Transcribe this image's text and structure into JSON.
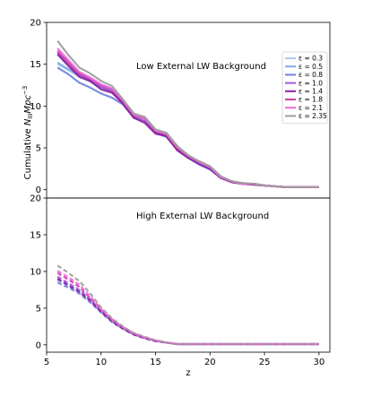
{
  "chart_data": [
    {
      "type": "line",
      "title": "Low External LW Background",
      "xlabel": "",
      "ylabel_main": "Cumulative ",
      "ylabel_symbol": "N",
      "ylabel_sub": "III",
      "ylabel_unit": "Mpc",
      "ylabel_exp": "−3",
      "xlim": [
        5,
        31
      ],
      "ylim": [
        -1,
        20
      ],
      "yticks": [
        0,
        5,
        10,
        15,
        20
      ],
      "xticks": [],
      "legend_placement": "top-right",
      "line_style": "solid",
      "x": [
        6,
        7,
        8,
        9,
        10,
        11,
        12,
        13,
        14,
        15,
        16,
        17,
        18,
        19,
        20,
        21,
        22,
        23,
        24,
        25,
        26,
        27,
        28,
        29,
        30
      ],
      "series": [
        {
          "name": "ε = 0.3",
          "color": "#a9cdf0",
          "values": [
            15.0,
            14.3,
            13.5,
            12.9,
            12.2,
            11.8,
            10.5,
            9.0,
            8.5,
            7.0,
            6.5,
            5.0,
            4.0,
            3.2,
            2.6,
            1.5,
            1.0,
            0.7,
            0.7,
            0.5,
            0.4,
            0.3,
            0.3,
            0.3,
            0.3
          ]
        },
        {
          "name": "ε = 0.5",
          "color": "#7ea8e8",
          "values": [
            15.2,
            14.4,
            13.7,
            13.0,
            12.3,
            11.9,
            10.6,
            9.0,
            8.6,
            7.0,
            6.6,
            5.0,
            4.0,
            3.3,
            2.6,
            1.5,
            1.0,
            0.7,
            0.7,
            0.5,
            0.4,
            0.3,
            0.3,
            0.3,
            0.3
          ]
        },
        {
          "name": "ε = 0.8",
          "color": "#6f7fe0",
          "values": [
            14.6,
            13.8,
            12.8,
            12.2,
            11.5,
            11.0,
            10.2,
            8.6,
            8.2,
            6.8,
            6.3,
            4.8,
            3.8,
            3.0,
            2.4,
            1.4,
            0.9,
            0.7,
            0.6,
            0.5,
            0.4,
            0.3,
            0.3,
            0.3,
            0.3
          ]
        },
        {
          "name": "ε = 1.0",
          "color": "#a05adc",
          "values": [
            16.4,
            15.0,
            13.8,
            13.1,
            12.3,
            11.7,
            10.4,
            8.7,
            8.2,
            6.8,
            6.4,
            4.8,
            3.9,
            3.2,
            2.5,
            1.4,
            0.9,
            0.7,
            0.7,
            0.5,
            0.4,
            0.3,
            0.3,
            0.3,
            0.3
          ]
        },
        {
          "name": "ε = 1.4",
          "color": "#8a1f9e",
          "values": [
            16.2,
            14.8,
            13.5,
            13.0,
            12.0,
            11.6,
            10.3,
            8.6,
            8.0,
            6.7,
            6.4,
            4.7,
            3.8,
            3.1,
            2.5,
            1.4,
            0.9,
            0.7,
            0.6,
            0.5,
            0.4,
            0.3,
            0.3,
            0.3,
            0.3
          ]
        },
        {
          "name": "ε = 1.8",
          "color": "#d03ca8",
          "values": [
            16.6,
            15.2,
            13.9,
            13.3,
            12.5,
            12.0,
            10.6,
            8.9,
            8.5,
            7.0,
            6.6,
            5.0,
            4.0,
            3.3,
            2.7,
            1.5,
            1.0,
            0.7,
            0.7,
            0.5,
            0.4,
            0.3,
            0.3,
            0.3,
            0.3
          ]
        },
        {
          "name": "ε = 2.1",
          "color": "#f06ad8",
          "values": [
            16.9,
            15.5,
            14.1,
            13.4,
            12.6,
            12.1,
            10.7,
            9.0,
            8.6,
            7.1,
            6.7,
            5.1,
            4.1,
            3.3,
            2.7,
            1.5,
            1.0,
            0.7,
            0.7,
            0.5,
            0.4,
            0.3,
            0.3,
            0.3,
            0.3
          ]
        },
        {
          "name": "ε = 2.35",
          "color": "#9c9c9c",
          "values": [
            17.8,
            16.1,
            14.6,
            13.9,
            13.0,
            12.4,
            10.8,
            9.1,
            8.7,
            7.2,
            6.8,
            5.2,
            4.1,
            3.4,
            2.8,
            1.6,
            1.0,
            0.8,
            0.7,
            0.5,
            0.4,
            0.3,
            0.3,
            0.3,
            0.3
          ]
        }
      ]
    },
    {
      "type": "line",
      "title": "High External LW Background",
      "xlabel": "z",
      "ylabel_main": "",
      "ylabel_symbol": "",
      "ylabel_sub": "",
      "ylabel_unit": "",
      "ylabel_exp": "",
      "xlim": [
        5,
        31
      ],
      "ylim": [
        -1,
        20
      ],
      "yticks": [
        0,
        5,
        10,
        15,
        20
      ],
      "xticks": [
        5,
        10,
        15,
        20,
        25,
        30
      ],
      "line_style": "dashed",
      "x": [
        6,
        7,
        8,
        9,
        10,
        11,
        12,
        13,
        14,
        15,
        16,
        17,
        18,
        19,
        20,
        21,
        22,
        23,
        24,
        25,
        26,
        27,
        28,
        29,
        30
      ],
      "series": [
        {
          "color": "#a9cdf0",
          "values": [
            8.8,
            8.0,
            7.2,
            6.0,
            4.5,
            3.2,
            2.3,
            1.5,
            1.0,
            0.6,
            0.3,
            0.1,
            0.1,
            0.1,
            0.1,
            0.1,
            0.1,
            0.1,
            0.1,
            0.1,
            0.1,
            0.1,
            0.1,
            0.1,
            0.1
          ]
        },
        {
          "color": "#7ea8e8",
          "values": [
            9.0,
            8.2,
            7.4,
            6.2,
            4.6,
            3.3,
            2.3,
            1.5,
            1.0,
            0.6,
            0.3,
            0.1,
            0.1,
            0.1,
            0.1,
            0.1,
            0.1,
            0.1,
            0.1,
            0.1,
            0.1,
            0.1,
            0.1,
            0.1,
            0.1
          ]
        },
        {
          "color": "#6f7fe0",
          "values": [
            8.5,
            7.8,
            7.0,
            5.8,
            4.4,
            3.1,
            2.2,
            1.4,
            0.9,
            0.5,
            0.3,
            0.1,
            0.1,
            0.1,
            0.1,
            0.1,
            0.1,
            0.1,
            0.1,
            0.1,
            0.1,
            0.1,
            0.1,
            0.1,
            0.1
          ]
        },
        {
          "color": "#a05adc",
          "values": [
            9.3,
            8.4,
            7.5,
            6.2,
            4.6,
            3.3,
            2.3,
            1.5,
            1.0,
            0.6,
            0.3,
            0.1,
            0.1,
            0.1,
            0.1,
            0.1,
            0.1,
            0.1,
            0.1,
            0.1,
            0.1,
            0.1,
            0.1,
            0.1,
            0.1
          ]
        },
        {
          "color": "#8a1f9e",
          "values": [
            9.0,
            8.1,
            7.2,
            6.0,
            4.5,
            3.2,
            2.2,
            1.4,
            0.9,
            0.5,
            0.3,
            0.1,
            0.1,
            0.1,
            0.1,
            0.1,
            0.1,
            0.1,
            0.1,
            0.1,
            0.1,
            0.1,
            0.1,
            0.1,
            0.1
          ]
        },
        {
          "color": "#d03ca8",
          "values": [
            9.8,
            8.9,
            7.9,
            6.4,
            4.8,
            3.4,
            2.4,
            1.5,
            1.0,
            0.6,
            0.3,
            0.1,
            0.1,
            0.1,
            0.1,
            0.1,
            0.1,
            0.1,
            0.1,
            0.1,
            0.1,
            0.1,
            0.1,
            0.1,
            0.1
          ]
        },
        {
          "color": "#f06ad8",
          "values": [
            10.1,
            9.2,
            8.2,
            6.6,
            4.9,
            3.5,
            2.4,
            1.6,
            1.0,
            0.6,
            0.3,
            0.1,
            0.1,
            0.1,
            0.1,
            0.1,
            0.1,
            0.1,
            0.1,
            0.1,
            0.1,
            0.1,
            0.1,
            0.1,
            0.1
          ]
        },
        {
          "color": "#9c9c9c",
          "values": [
            10.8,
            9.8,
            8.7,
            7.0,
            5.1,
            3.6,
            2.5,
            1.6,
            1.1,
            0.6,
            0.3,
            0.1,
            0.1,
            0.1,
            0.1,
            0.1,
            0.1,
            0.1,
            0.1,
            0.1,
            0.1,
            0.1,
            0.1,
            0.1,
            0.1
          ]
        }
      ]
    }
  ]
}
